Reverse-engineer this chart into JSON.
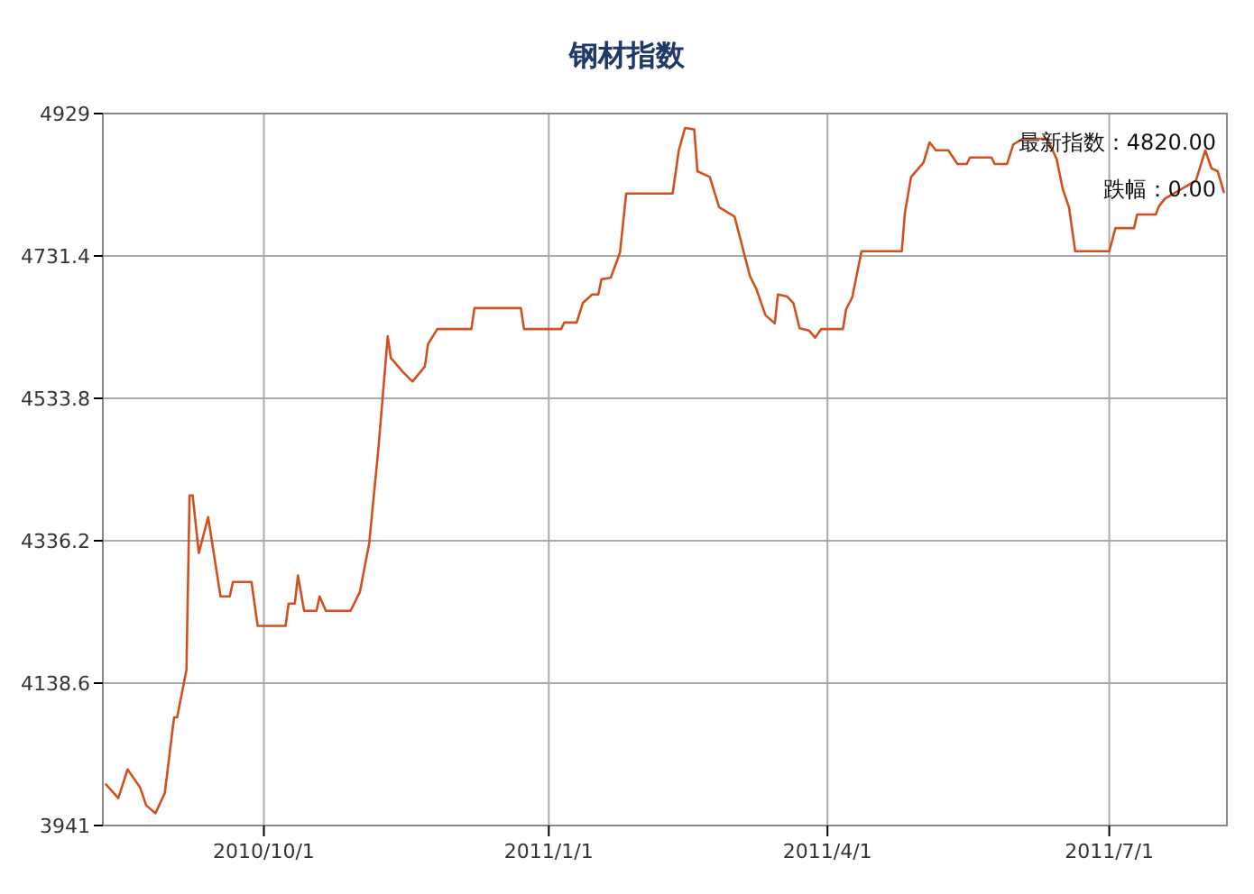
{
  "chart_data": {
    "type": "line",
    "title": "钢材指数",
    "x": [
      "2010-08-11",
      "2010-08-15",
      "2010-08-18",
      "2010-08-22",
      "2010-08-24",
      "2010-08-27",
      "2010-08-30",
      "2010-09-02",
      "2010-09-03",
      "2010-09-06",
      "2010-09-07",
      "2010-09-08",
      "2010-09-10",
      "2010-09-13",
      "2010-09-17",
      "2010-09-20",
      "2010-09-21",
      "2010-09-27",
      "2010-09-29",
      "2010-10-08",
      "2010-10-09",
      "2010-10-11",
      "2010-10-12",
      "2010-10-14",
      "2010-10-18",
      "2010-10-19",
      "2010-10-21",
      "2010-10-29",
      "2010-11-01",
      "2010-11-04",
      "2010-11-07",
      "2010-11-10",
      "2010-11-11",
      "2010-11-15",
      "2010-11-18",
      "2010-11-22",
      "2010-11-23",
      "2010-11-26",
      "2010-12-07",
      "2010-12-08",
      "2010-12-23",
      "2010-12-24",
      "2011-01-05",
      "2011-01-06",
      "2011-01-10",
      "2011-01-12",
      "2011-01-15",
      "2011-01-17",
      "2011-01-18",
      "2011-01-21",
      "2011-01-24",
      "2011-01-26",
      "2011-02-10",
      "2011-02-12",
      "2011-02-14",
      "2011-02-17",
      "2011-02-18",
      "2011-02-22",
      "2011-02-25",
      "2011-03-02",
      "2011-03-07",
      "2011-03-09",
      "2011-03-12",
      "2011-03-15",
      "2011-03-16",
      "2011-03-19",
      "2011-03-21",
      "2011-03-23",
      "2011-03-26",
      "2011-03-28",
      "2011-03-30",
      "2011-04-06",
      "2011-04-07",
      "2011-04-09",
      "2011-04-12",
      "2011-04-25",
      "2011-04-26",
      "2011-04-28",
      "2011-05-02",
      "2011-05-04",
      "2011-05-06",
      "2011-05-10",
      "2011-05-13",
      "2011-05-16",
      "2011-05-17",
      "2011-05-24",
      "2011-05-25",
      "2011-05-29",
      "2011-05-31",
      "2011-06-03",
      "2011-06-11",
      "2011-06-14",
      "2011-06-16",
      "2011-06-18",
      "2011-06-20",
      "2011-07-01",
      "2011-07-03",
      "2011-07-09",
      "2011-07-10",
      "2011-07-16",
      "2011-07-17",
      "2011-07-19",
      "2011-07-29",
      "2011-08-01",
      "2011-08-03",
      "2011-08-05",
      "2011-08-07"
    ],
    "values": [
      3998,
      3979,
      4019,
      3994,
      3969,
      3958,
      3986,
      4091,
      4091,
      4157,
      4399,
      4399,
      4319,
      4369,
      4259,
      4259,
      4279,
      4279,
      4218,
      4218,
      4249,
      4249,
      4288,
      4239,
      4239,
      4259,
      4239,
      4239,
      4265,
      4332,
      4465,
      4620,
      4590,
      4570,
      4557,
      4578,
      4609,
      4630,
      4630,
      4659,
      4659,
      4630,
      4630,
      4639,
      4639,
      4666,
      4678,
      4678,
      4699,
      4701,
      4736,
      4818,
      4818,
      4878,
      4909,
      4907,
      4849,
      4841,
      4799,
      4786,
      4703,
      4686,
      4649,
      4638,
      4678,
      4675,
      4666,
      4631,
      4628,
      4618,
      4630,
      4630,
      4657,
      4674,
      4738,
      4738,
      4791,
      4841,
      4861,
      4889,
      4878,
      4878,
      4859,
      4859,
      4868,
      4868,
      4859,
      4859,
      4886,
      4894,
      4894,
      4866,
      4824,
      4799,
      4738,
      4738,
      4770,
      4770,
      4789,
      4789,
      4800,
      4811,
      4836,
      4878,
      4853,
      4849,
      4820
    ],
    "color": "#d2501e",
    "xlim": [
      "2010-08-10",
      "2011-08-08"
    ],
    "xticks": [
      {
        "value": "2010-10-01",
        "label": "2010/10/1"
      },
      {
        "value": "2011-01-01",
        "label": "2011/1/1"
      },
      {
        "value": "2011-04-01",
        "label": "2011/4/1"
      },
      {
        "value": "2011-07-01",
        "label": "2011/7/1"
      }
    ],
    "ylim": [
      3941,
      4929
    ],
    "yticks": [
      3941,
      4138.6,
      4336.2,
      4533.8,
      4731.4,
      4929
    ],
    "grid": true,
    "annotations": [
      "最新指数：4820.00",
      "跌幅：0.00"
    ]
  }
}
